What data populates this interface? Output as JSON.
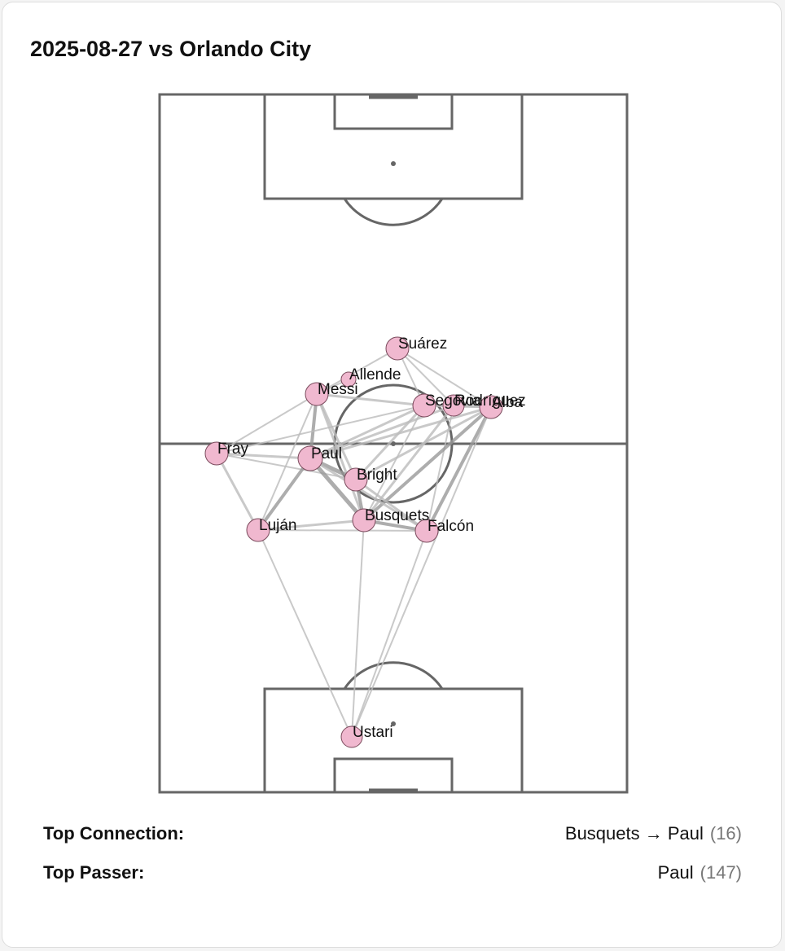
{
  "title": "2025-08-27 vs Orlando City",
  "nodes": [
    {
      "label": "Suárez"
    },
    {
      "label": "Allende"
    },
    {
      "label": "Messi"
    },
    {
      "label": "Segovia"
    },
    {
      "label": "Rodríguez"
    },
    {
      "label": "Alba"
    },
    {
      "label": "Fray"
    },
    {
      "label": "Paul"
    },
    {
      "label": "Bright"
    },
    {
      "label": "Luján"
    },
    {
      "label": "Busquets"
    },
    {
      "label": "Falcón"
    },
    {
      "label": "Ustari"
    }
  ],
  "stats": [
    {
      "label": "Top Connection:",
      "value": "Busquets → Paul",
      "count": "(16)"
    },
    {
      "label": "Top Passer:",
      "value": "Paul",
      "count": "(147)"
    }
  ]
}
